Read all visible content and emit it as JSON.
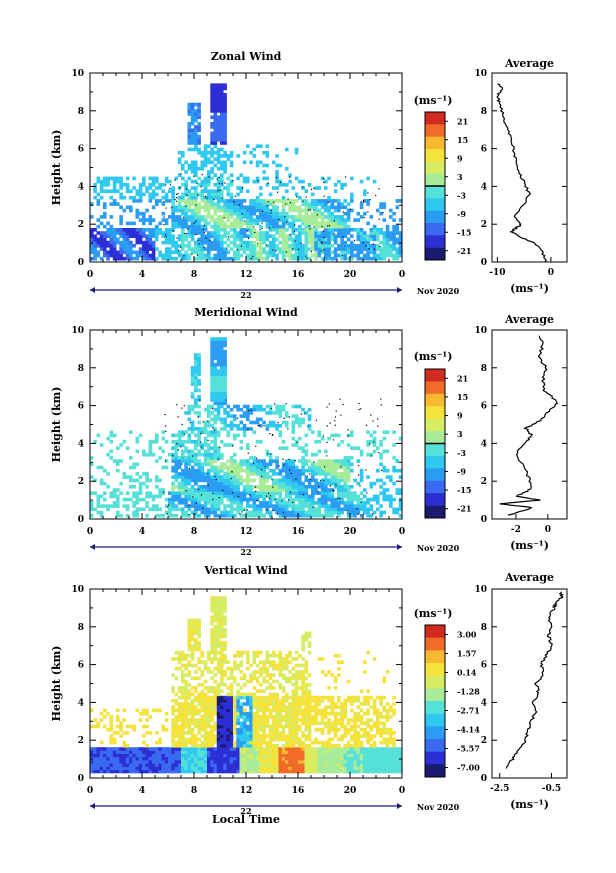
{
  "date_label": "Nov 2020",
  "day_label": "22",
  "xlabel_bottom": "Local Time",
  "colors": {
    "scale": [
      "#1a1a6e",
      "#2b2fd4",
      "#3a6af0",
      "#2a9df2",
      "#2fc8f0",
      "#55e0d8",
      "#a8ec9a",
      "#d7ec62",
      "#f5e23a",
      "#f8b830",
      "#f06a28",
      "#d22a20"
    ],
    "contour": "#000000",
    "axis": "#000000"
  },
  "chart_data": [
    {
      "type": "heatmap",
      "title": "Zonal Wind",
      "ylabel": "Height (km)",
      "xlim": [
        0,
        24
      ],
      "ylim": [
        0,
        10
      ],
      "xticks": [
        "0",
        "4",
        "8",
        "12",
        "16",
        "20",
        "0"
      ],
      "yticks": [
        "0",
        "2",
        "4",
        "6",
        "8",
        "10"
      ],
      "colorbar": {
        "unit": "(ms⁻¹)",
        "ticks": [
          "21",
          "15",
          "9",
          "3",
          "-3",
          "-9",
          "-15",
          "-21"
        ],
        "range": [
          -24,
          24
        ]
      }
    },
    {
      "type": "line",
      "title": "Average",
      "xlim": [
        -11,
        3
      ],
      "ylim": [
        0,
        10
      ],
      "xticks": [
        "-10",
        "0"
      ],
      "yticks": [
        "0",
        "2",
        "4",
        "6",
        "8",
        "10"
      ],
      "xlabel": "(ms⁻¹)",
      "x": [
        -1.0,
        -1.5,
        -3.0,
        -5.5,
        -7.5,
        -6.5,
        -5.5,
        -7.0,
        -5.0,
        -4.0,
        -5.0,
        -6.0,
        -6.5,
        -7.0,
        -7.5,
        -8.5,
        -9.0,
        -9.5,
        -10.0,
        -9.0,
        -10.0
      ],
      "y": [
        0.0,
        0.5,
        1.0,
        1.3,
        1.6,
        1.8,
        2.0,
        2.4,
        3.0,
        3.6,
        4.2,
        4.8,
        5.4,
        6.0,
        6.6,
        7.2,
        7.8,
        8.4,
        8.8,
        9.1,
        9.5
      ]
    },
    {
      "type": "heatmap",
      "title": "Meridional Wind",
      "ylabel": "Height (km)",
      "xlim": [
        0,
        24
      ],
      "ylim": [
        0,
        10
      ],
      "xticks": [
        "0",
        "4",
        "8",
        "12",
        "16",
        "20",
        "0"
      ],
      "yticks": [
        "0",
        "2",
        "4",
        "6",
        "8",
        "10"
      ],
      "colorbar": {
        "unit": "(ms⁻¹)",
        "ticks": [
          "21",
          "15",
          "9",
          "3",
          "-3",
          "-9",
          "-15",
          "-21"
        ],
        "range": [
          -24,
          24
        ]
      }
    },
    {
      "type": "line",
      "title": "Average",
      "xlim": [
        -3.5,
        1.2
      ],
      "ylim": [
        0,
        10
      ],
      "xticks": [
        "-2",
        "0"
      ],
      "yticks": [
        "0",
        "2",
        "4",
        "6",
        "8",
        "10"
      ],
      "xlabel": "(ms⁻¹)",
      "x": [
        -2.5,
        -1.0,
        -3.0,
        -0.5,
        -2.0,
        -1.0,
        -1.2,
        -1.5,
        -2.0,
        -1.5,
        -1.0,
        -1.4,
        -0.5,
        0.2,
        0.6,
        -0.2,
        -0.3,
        -0.1,
        -0.6,
        -0.3,
        -0.5
      ],
      "y": [
        0.2,
        0.6,
        0.8,
        1.0,
        1.2,
        1.6,
        2.2,
        2.8,
        3.4,
        4.0,
        4.4,
        4.8,
        5.2,
        5.8,
        6.2,
        6.8,
        7.4,
        8.0,
        8.6,
        9.2,
        9.8
      ]
    },
    {
      "type": "heatmap",
      "title": "Vertical Wind",
      "ylabel": "Height (km)",
      "xlabel": "Local Time",
      "xlim": [
        0,
        24
      ],
      "ylim": [
        0,
        10
      ],
      "xticks": [
        "0",
        "4",
        "8",
        "12",
        "16",
        "20",
        "0"
      ],
      "yticks": [
        "0",
        "2",
        "4",
        "6",
        "8",
        "10"
      ],
      "colorbar": {
        "unit": "(ms⁻¹)",
        "ticks": [
          "3.00",
          "1.57",
          "0.14",
          "-1.28",
          "-2.71",
          "-4.14",
          "-5.57",
          "-7.00"
        ],
        "range": [
          -7.7,
          3.7
        ]
      }
    },
    {
      "type": "line",
      "title": "Average",
      "xlim": [
        -2.8,
        0.1
      ],
      "ylim": [
        0,
        10
      ],
      "xticks": [
        "-2.5",
        "-0.5"
      ],
      "yticks": [
        "0",
        "2",
        "4",
        "6",
        "8",
        "10"
      ],
      "xlabel": "(ms⁻¹)",
      "x": [
        -2.3,
        -2.0,
        -1.8,
        -1.5,
        -1.4,
        -1.3,
        -1.1,
        -1.2,
        -1.0,
        -1.1,
        -0.8,
        -0.9,
        -0.7,
        -0.5,
        -0.6,
        -0.5,
        -0.6,
        -0.4,
        -0.3,
        -0.1,
        -0.2
      ],
      "y": [
        0.5,
        1.0,
        1.5,
        2.0,
        2.5,
        3.0,
        3.5,
        4.0,
        4.5,
        5.0,
        5.5,
        6.0,
        6.5,
        7.0,
        7.5,
        8.0,
        8.5,
        9.0,
        9.3,
        9.6,
        9.9
      ]
    }
  ]
}
